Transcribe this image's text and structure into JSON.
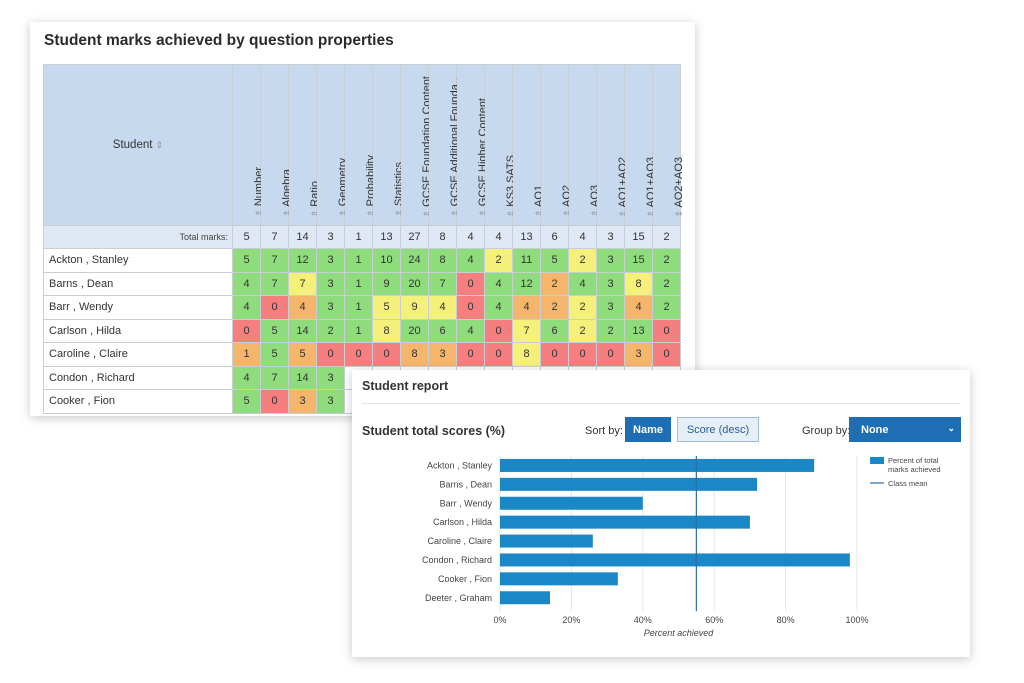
{
  "marks_table": {
    "title": "Student marks achieved by question properties",
    "student_header": "Student",
    "sort_glyph": "⇕",
    "total_label": "Total marks:",
    "columns": [
      "Number",
      "Algebra",
      "Ratio",
      "Geometry",
      "Probability",
      "Statistics",
      "GCSE Foundation Content",
      "GCSE Additional Founda..",
      "GCSE Higher Content",
      "KS3 SATS",
      "AO1",
      "AO2",
      "AO3",
      "AO1+AO2",
      "AO1+AO3",
      "AO2+AO3"
    ],
    "totals": [
      "5",
      "7",
      "14",
      "3",
      "1",
      "13",
      "27",
      "8",
      "4",
      "4",
      "13",
      "6",
      "4",
      "3",
      "15",
      "2"
    ],
    "rows": [
      {
        "name": "Ackton , Stanley",
        "v": [
          "5",
          "7",
          "12",
          "3",
          "1",
          "10",
          "24",
          "8",
          "4",
          "2",
          "11",
          "5",
          "2",
          "3",
          "15",
          "2"
        ],
        "c": [
          "g",
          "g",
          "g",
          "g",
          "g",
          "g",
          "g",
          "g",
          "g",
          "y",
          "g",
          "g",
          "y",
          "g",
          "g",
          "g"
        ]
      },
      {
        "name": "Barns , Dean",
        "v": [
          "4",
          "7",
          "7",
          "3",
          "1",
          "9",
          "20",
          "7",
          "0",
          "4",
          "12",
          "2",
          "4",
          "3",
          "8",
          "2"
        ],
        "c": [
          "g",
          "g",
          "y",
          "g",
          "g",
          "g",
          "g",
          "g",
          "r",
          "g",
          "g",
          "o",
          "g",
          "g",
          "y",
          "g"
        ]
      },
      {
        "name": "Barr , Wendy",
        "v": [
          "4",
          "0",
          "4",
          "3",
          "1",
          "5",
          "9",
          "4",
          "0",
          "4",
          "4",
          "2",
          "2",
          "3",
          "4",
          "2"
        ],
        "c": [
          "g",
          "r",
          "o",
          "g",
          "g",
          "y",
          "y",
          "y",
          "r",
          "g",
          "o",
          "o",
          "y",
          "g",
          "o",
          "g"
        ]
      },
      {
        "name": "Carlson , Hilda",
        "v": [
          "0",
          "5",
          "14",
          "2",
          "1",
          "8",
          "20",
          "6",
          "4",
          "0",
          "7",
          "6",
          "2",
          "2",
          "13",
          "0"
        ],
        "c": [
          "r",
          "g",
          "g",
          "g",
          "g",
          "y",
          "g",
          "g",
          "g",
          "r",
          "y",
          "g",
          "y",
          "g",
          "g",
          "r"
        ]
      },
      {
        "name": "Caroline , Claire",
        "v": [
          "1",
          "5",
          "5",
          "0",
          "0",
          "0",
          "8",
          "3",
          "0",
          "0",
          "8",
          "0",
          "0",
          "0",
          "3",
          "0"
        ],
        "c": [
          "o",
          "g",
          "o",
          "r",
          "r",
          "r",
          "o",
          "o",
          "r",
          "r",
          "y",
          "r",
          "r",
          "r",
          "o",
          "r"
        ]
      },
      {
        "name": "Condon , Richard",
        "v": [
          "4",
          "7",
          "14",
          "3",
          "",
          "",
          "",
          "",
          "",
          "",
          "",
          "",
          "",
          "",
          "",
          ""
        ],
        "c": [
          "g",
          "g",
          "g",
          "g",
          "",
          "",
          "",
          "",
          "",
          "",
          "",
          "",
          "",
          "",
          "",
          ""
        ]
      },
      {
        "name": "Cooker , Fion",
        "v": [
          "5",
          "0",
          "3",
          "3",
          "",
          "",
          "",
          "",
          "",
          "",
          "",
          "",
          "",
          "",
          "",
          ""
        ],
        "c": [
          "g",
          "r",
          "o",
          "g",
          "",
          "",
          "",
          "",
          "",
          "",
          "",
          "",
          "",
          "",
          "",
          ""
        ]
      }
    ]
  },
  "report": {
    "title": "Student report",
    "chart_title": "Student total scores (%)",
    "sort_label": "Sort by:",
    "sort_name": "Name",
    "sort_score": "Score (desc)",
    "group_label": "Group by:",
    "group_value": "None",
    "chevron_glyph": "⌄"
  },
  "colors": {
    "bar": "#1a87c6",
    "mean": "#2d6da8",
    "grid": "#e6e6e6",
    "good": "#8fdc7c",
    "warn": "#f4f07a",
    "low": "#f5b66b",
    "bad": "#f57f7f"
  },
  "chart_data": {
    "type": "bar",
    "orientation": "horizontal",
    "categories": [
      "Ackton , Stanley",
      "Barns , Dean",
      "Barr , Wendy",
      "Carlson , Hilda",
      "Caroline , Claire",
      "Condon , Richard",
      "Cooker , Fion",
      "Deeter , Graham"
    ],
    "series": [
      {
        "name": "Percent of total marks achieved",
        "values": [
          88,
          72,
          40,
          70,
          26,
          98,
          33,
          14
        ]
      }
    ],
    "mean": {
      "name": "Class mean",
      "value": 55
    },
    "xlim": [
      0,
      100
    ],
    "xticks": [
      "0%",
      "20%",
      "40%",
      "60%",
      "80%",
      "100%"
    ],
    "xlabel": "Percent achieved",
    "legend_position": "top-right",
    "grid": true
  }
}
